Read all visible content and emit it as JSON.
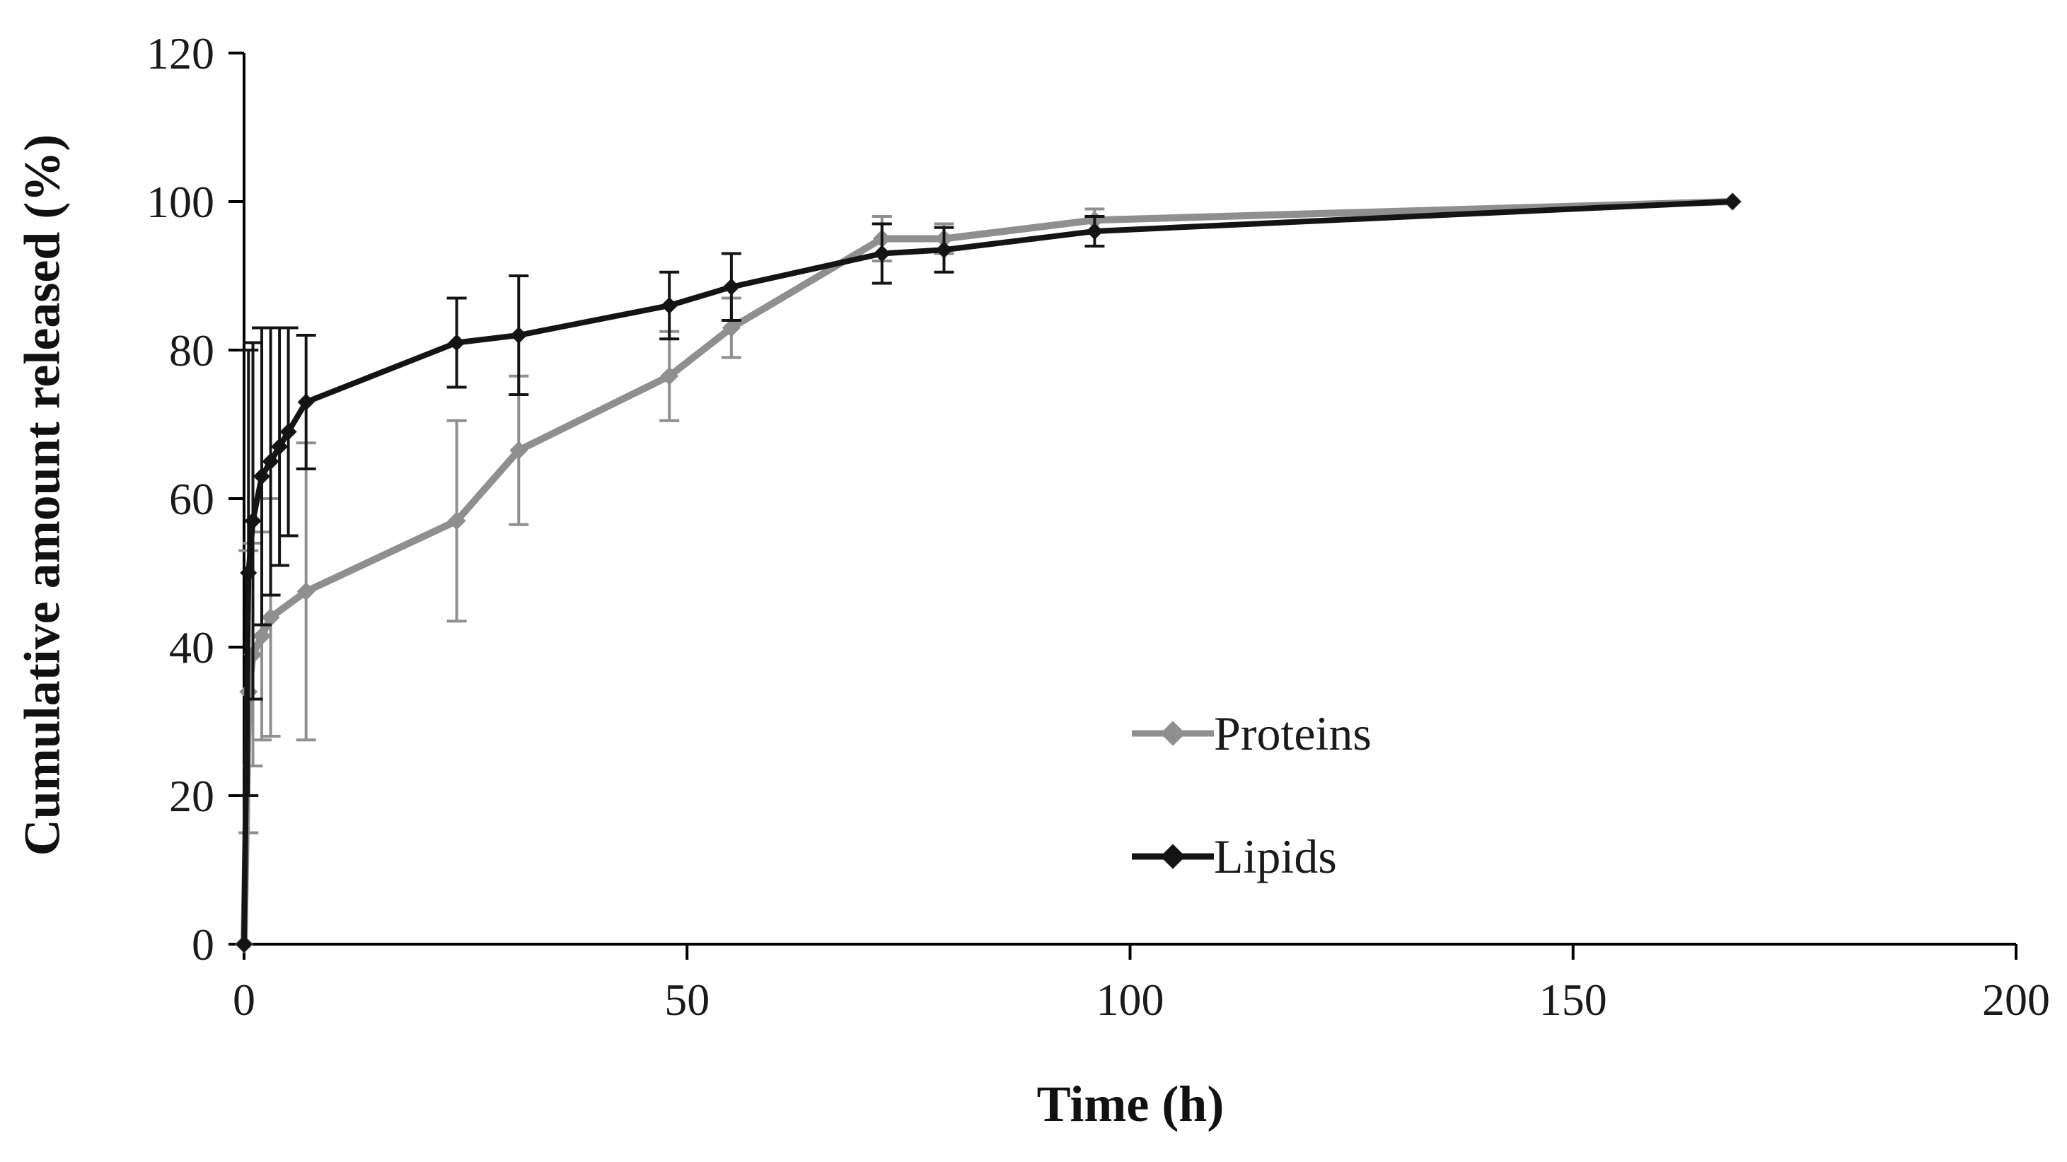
{
  "chart_data": {
    "type": "line",
    "title": "",
    "xlabel": "Time (h)",
    "ylabel": "Cumulative amount released (%)",
    "xlim": [
      0,
      200
    ],
    "ylim": [
      0,
      120
    ],
    "xticks": [
      0,
      50,
      100,
      150,
      200
    ],
    "yticks": [
      0,
      20,
      40,
      60,
      80,
      100,
      120
    ],
    "grid": false,
    "legend_position": "inside-center-right",
    "axis_color": "#000000",
    "tick_label_color": "#1a1a1a",
    "series": [
      {
        "name": "Proteins",
        "color": "#8f8f8f",
        "marker": "diamond",
        "x": [
          0,
          0.5,
          1,
          2,
          3,
          7,
          24,
          31,
          48,
          55,
          72,
          79,
          96,
          168
        ],
        "y": [
          0,
          34,
          39,
          41.5,
          44,
          47.5,
          57,
          66.5,
          76.5,
          83,
          95,
          95,
          97.5,
          100
        ],
        "yerr": [
          0,
          19,
          15,
          14,
          16,
          20,
          13.5,
          10,
          6,
          4,
          3,
          2,
          1.5,
          0
        ]
      },
      {
        "name": "Lipids",
        "color": "#141414",
        "marker": "diamond",
        "x": [
          0,
          0.5,
          1,
          2,
          3,
          4,
          5,
          7,
          24,
          31,
          48,
          55,
          72,
          79,
          96,
          168
        ],
        "y": [
          0,
          50,
          57,
          63,
          65,
          67,
          69,
          73,
          81,
          82,
          86,
          88.5,
          93,
          93.5,
          96,
          100
        ],
        "yerr": [
          0,
          30,
          24,
          20,
          18,
          16,
          14,
          9,
          6,
          8,
          4.5,
          4.5,
          4,
          3,
          2,
          0
        ]
      }
    ]
  }
}
